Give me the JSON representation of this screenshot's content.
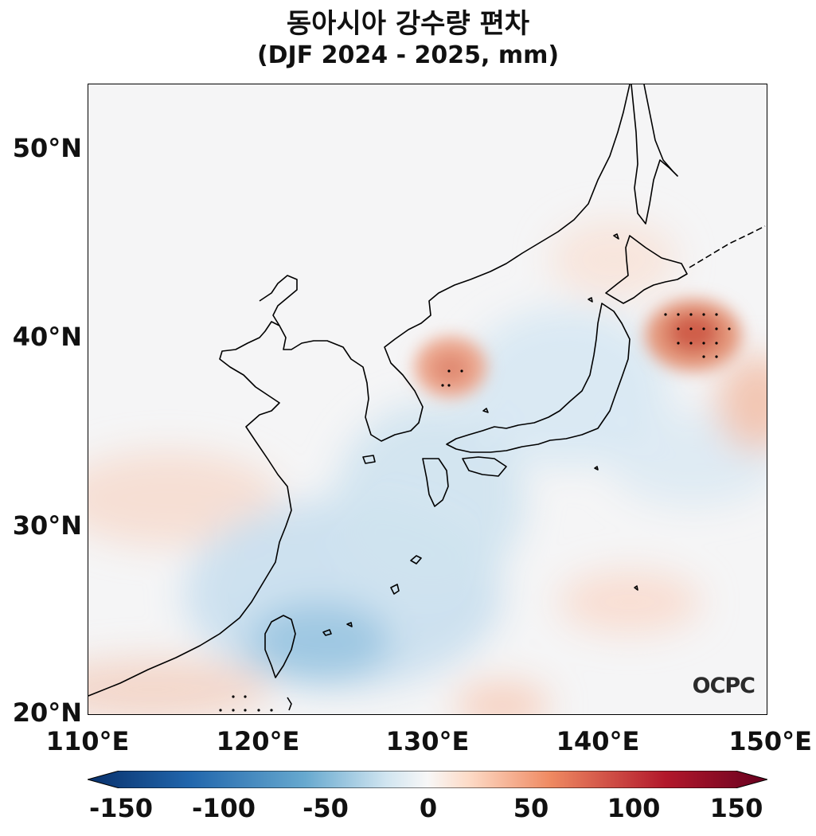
{
  "title": "동아시아 강수량 편차",
  "subtitle": "(DJF 2024 - 2025, mm)",
  "lat_labels": [
    "50°N",
    "40°N",
    "30°N",
    "20°N"
  ],
  "lon_labels": [
    "110°E",
    "120°E",
    "130°E",
    "140°E",
    "150°E"
  ],
  "colorbar": {
    "ticks": [
      "-150",
      "-100",
      "-50",
      "0",
      "50",
      "100",
      "150"
    ],
    "min": -150,
    "max": 150,
    "colors": [
      "#08306b",
      "#2166ac",
      "#67a9cf",
      "#d1e5f0",
      "#f7f7f7",
      "#fddbc7",
      "#ef8a62",
      "#b2182b",
      "#67001f"
    ]
  },
  "logo": "OCPC",
  "map_extent": {
    "lon_min": 110,
    "lon_max": 150,
    "lat_min": 20,
    "lat_max": 53.5
  }
}
